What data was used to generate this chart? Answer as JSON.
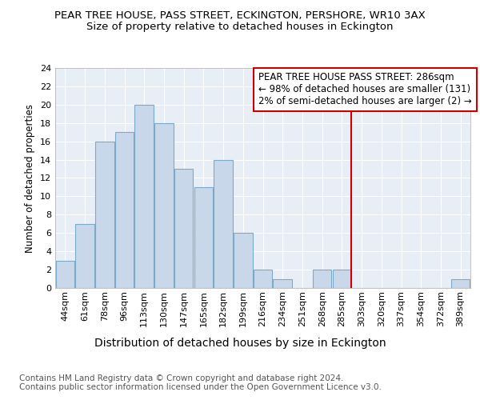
{
  "title": "PEAR TREE HOUSE, PASS STREET, ECKINGTON, PERSHORE, WR10 3AX",
  "subtitle": "Size of property relative to detached houses in Eckington",
  "xlabel": "Distribution of detached houses by size in Eckington",
  "ylabel": "Number of detached properties",
  "categories": [
    "44sqm",
    "61sqm",
    "78sqm",
    "96sqm",
    "113sqm",
    "130sqm",
    "147sqm",
    "165sqm",
    "182sqm",
    "199sqm",
    "216sqm",
    "234sqm",
    "251sqm",
    "268sqm",
    "285sqm",
    "303sqm",
    "320sqm",
    "337sqm",
    "354sqm",
    "372sqm",
    "389sqm"
  ],
  "values": [
    3,
    7,
    16,
    17,
    20,
    18,
    13,
    11,
    14,
    6,
    2,
    1,
    0,
    2,
    2,
    0,
    0,
    0,
    0,
    0,
    1
  ],
  "bar_color": "#c8d8ea",
  "bar_edge_color": "#7baac8",
  "reference_line_index": 14,
  "reference_line_color": "#cc0000",
  "annotation_text": "PEAR TREE HOUSE PASS STREET: 286sqm\n← 98% of detached houses are smaller (131)\n2% of semi-detached houses are larger (2) →",
  "annotation_box_color": "#ffffff",
  "annotation_box_edge_color": "#cc0000",
  "ylim": [
    0,
    24
  ],
  "yticks": [
    0,
    2,
    4,
    6,
    8,
    10,
    12,
    14,
    16,
    18,
    20,
    22,
    24
  ],
  "plot_bg_color": "#e8eef6",
  "figure_bg_color": "#ffffff",
  "grid_color": "#ffffff",
  "footer_text": "Contains HM Land Registry data © Crown copyright and database right 2024.\nContains public sector information licensed under the Open Government Licence v3.0.",
  "title_fontsize": 9.5,
  "subtitle_fontsize": 9.5,
  "xlabel_fontsize": 10,
  "ylabel_fontsize": 8.5,
  "tick_fontsize": 8,
  "annotation_fontsize": 8.5,
  "footer_fontsize": 7.5
}
